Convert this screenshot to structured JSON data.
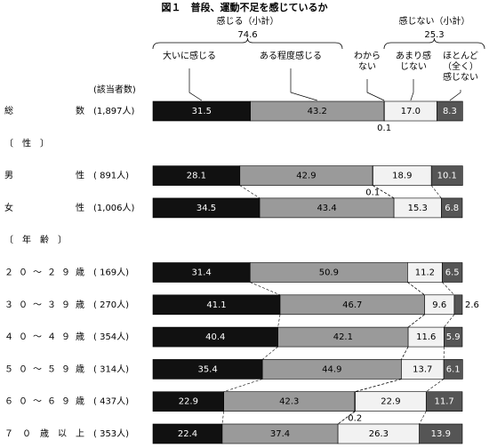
{
  "chart_data": {
    "type": "stacked-bar-100",
    "title": "図１　普段、運動不足を感じているか",
    "count_header": "(該当者数)",
    "groups": [
      {
        "name": "感じる（小計）",
        "value": 74.6
      },
      {
        "name": "感じない（小計）",
        "value": 25.3
      }
    ],
    "categories": [
      "総数",
      "〔　性　〕",
      "男性",
      "女性",
      "〔　年　齢　〕",
      "２０～２９歳",
      "３０～３９歳",
      "４０～４９歳",
      "５０～５９歳",
      "６０～６９歳",
      "７０歳以上"
    ],
    "counts": [
      "(1,897人)",
      null,
      "( 891人)",
      "(1,006人)",
      null,
      "( 169人)",
      "( 270人)",
      "( 354人)",
      "( 314人)",
      "( 437人)",
      "( 353人)"
    ],
    "xlim": [
      0,
      100
    ],
    "series": [
      {
        "name": "大いに感じる",
        "color": "#111111",
        "values": [
          31.5,
          null,
          28.1,
          34.5,
          null,
          31.4,
          41.1,
          40.4,
          35.4,
          22.9,
          22.4
        ],
        "value_labels": [
          "31.5",
          null,
          "28.1",
          "34.5",
          null,
          "31.4",
          "41.1",
          "40.4",
          "35.4",
          "22.9",
          "22.4"
        ]
      },
      {
        "name": "ある程度感じる",
        "color": "#9a9a9a",
        "values": [
          43.2,
          null,
          42.9,
          43.4,
          null,
          50.9,
          46.7,
          42.1,
          44.9,
          42.3,
          37.4
        ],
        "value_labels": [
          "43.2",
          null,
          "42.9",
          "43.4",
          null,
          "50.9",
          "46.7",
          "42.1",
          "44.9",
          "42.3",
          "37.4"
        ]
      },
      {
        "name": "わから\nない",
        "color": "#ffffff",
        "values": [
          0.1,
          null,
          0.1,
          0,
          null,
          0,
          0,
          0,
          0,
          0.2,
          0
        ],
        "value_labels": [
          "0.1",
          null,
          "0.1",
          null,
          null,
          null,
          null,
          null,
          null,
          "0.2",
          null
        ]
      },
      {
        "name": "あまり感\nじない",
        "color": "#f2f2f2",
        "values": [
          17.0,
          null,
          18.9,
          15.3,
          null,
          11.2,
          9.6,
          11.6,
          13.7,
          22.9,
          26.3
        ],
        "value_labels": [
          "17.0",
          null,
          "18.9",
          "15.3",
          null,
          "11.2",
          "9.6",
          "11.6",
          "13.7",
          "22.9",
          "26.3"
        ]
      },
      {
        "name": "ほとんど\n（全く）\n感じない",
        "color": "#555555",
        "values": [
          8.3,
          null,
          10.1,
          6.8,
          null,
          6.5,
          2.6,
          5.9,
          6.1,
          11.7,
          13.9
        ],
        "value_labels": [
          "8.3",
          null,
          "10.1",
          "6.8",
          null,
          "6.5",
          "2.6",
          "5.9",
          "6.1",
          "11.7",
          "13.9"
        ]
      }
    ]
  }
}
